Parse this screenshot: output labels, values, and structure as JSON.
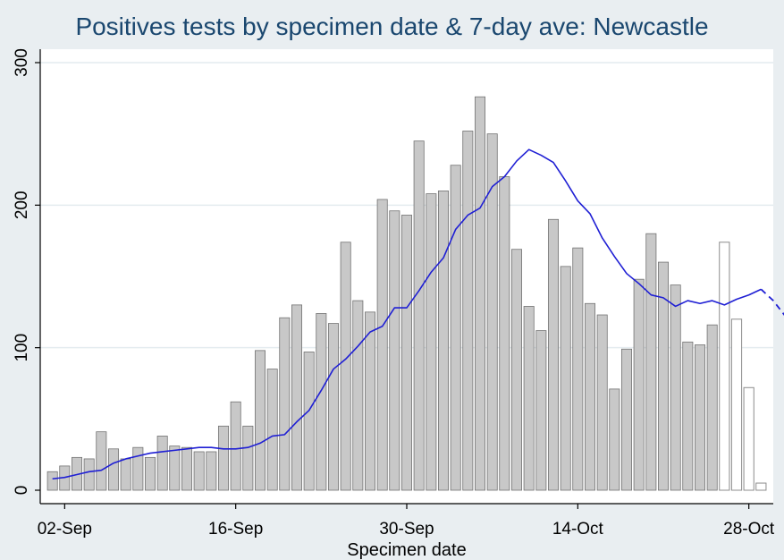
{
  "chart_data": {
    "type": "bar",
    "title": "Positives tests by specimen date & 7-day ave: Newcastle",
    "xlabel": "Specimen date",
    "ylabel": "",
    "ylim": [
      0,
      300
    ],
    "xlim": [
      "2020-08-31",
      "2020-10-30"
    ],
    "start_date": "2020-09-01",
    "x_ticks": [
      {
        "date": "2020-09-02",
        "label": "02-Sep"
      },
      {
        "date": "2020-09-16",
        "label": "16-Sep"
      },
      {
        "date": "2020-09-30",
        "label": "30-Sep"
      },
      {
        "date": "2020-10-14",
        "label": "14-Oct"
      },
      {
        "date": "2020-10-28",
        "label": "28-Oct"
      }
    ],
    "y_ticks": [
      0,
      100,
      200,
      300
    ],
    "grid": true,
    "series": [
      {
        "style": "filled-bars",
        "values": [
          13,
          17,
          23,
          22,
          41,
          29,
          22,
          30,
          23,
          38,
          31,
          30,
          27,
          27,
          45,
          62,
          45,
          98,
          85,
          121,
          130,
          97,
          124,
          117,
          174,
          133,
          125,
          204,
          196,
          193,
          245,
          208,
          210,
          228,
          252,
          276,
          250,
          220,
          169,
          129,
          112,
          190,
          157,
          170,
          131,
          123,
          71,
          99,
          148,
          180,
          160,
          144,
          104,
          102,
          116
        ]
      },
      {
        "style": "outline-bars",
        "start_date": "2020-10-26",
        "values": [
          174,
          120,
          72,
          5
        ]
      },
      {
        "style": "line",
        "values": [
          8,
          9,
          11,
          13,
          14,
          19,
          22,
          24,
          26,
          27,
          28,
          29,
          30,
          30,
          29,
          29,
          30,
          33,
          38,
          39,
          48,
          56,
          70,
          85,
          92,
          101,
          111,
          115,
          128,
          128,
          140,
          153,
          163,
          183,
          193,
          198,
          213,
          220,
          231,
          239,
          235,
          230,
          217,
          203,
          194,
          177,
          164,
          152,
          145,
          137,
          135,
          129,
          133,
          131,
          133,
          130,
          134,
          137,
          141
        ]
      },
      {
        "style": "dashed-line",
        "values": [
          141,
          133,
          122
        ]
      }
    ]
  },
  "colors": {
    "background": "#e9eef1",
    "plot_area": "#ffffff",
    "bar_fill": "#c8c8c8",
    "bar_stroke": "#737373",
    "outline_bar_stroke": "#8c8c8c",
    "line": "#1f1fd4",
    "title": "#1a476f",
    "grid": "#e4ebef"
  }
}
